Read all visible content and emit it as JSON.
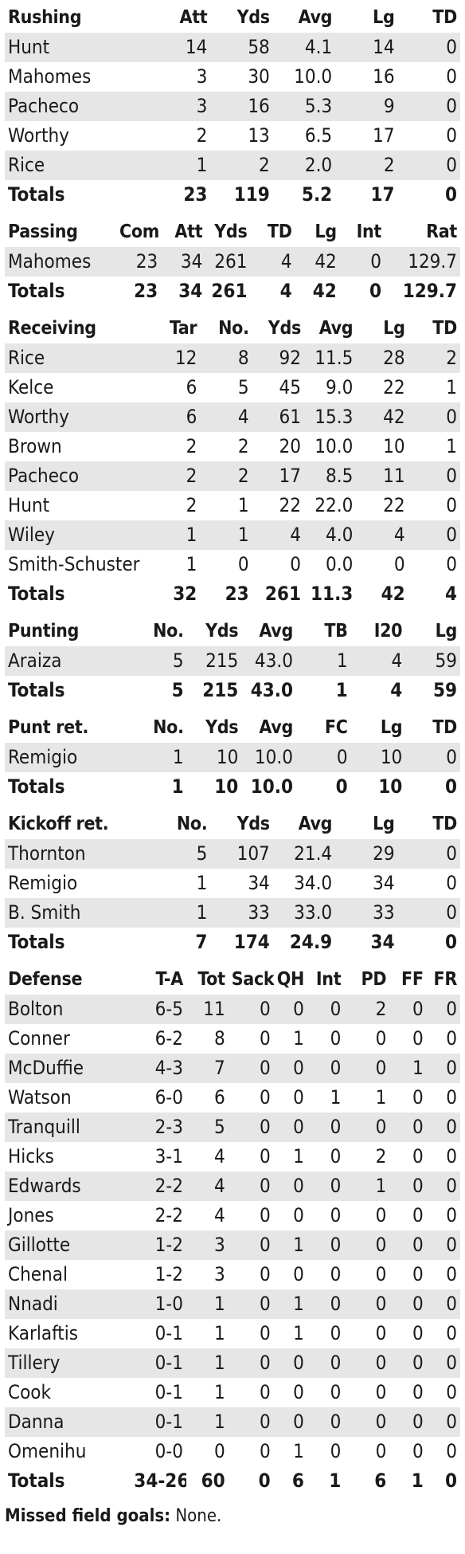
{
  "sections": [
    {
      "id": "rushing",
      "title": "Rushing",
      "headers": [
        "Att",
        "Yds",
        "Avg",
        "Lg",
        "TD"
      ],
      "rows": [
        [
          "Hunt",
          "14",
          "58",
          "4.1",
          "14",
          "0"
        ],
        [
          "Mahomes",
          "3",
          "30",
          "10.0",
          "16",
          "0"
        ],
        [
          "Pacheco",
          "3",
          "16",
          "5.3",
          "9",
          "0"
        ],
        [
          "Worthy",
          "2",
          "13",
          "6.5",
          "17",
          "0"
        ],
        [
          "Rice",
          "1",
          "2",
          "2.0",
          "2",
          "0"
        ]
      ],
      "totals": [
        "Totals",
        "23",
        "119",
        "5.2",
        "17",
        "0"
      ]
    },
    {
      "id": "passing",
      "title": "Passing",
      "headers": [
        "Com",
        "Att",
        "Yds",
        "TD",
        "Lg",
        "Int",
        "Rat"
      ],
      "rows": [
        [
          "Mahomes",
          "23",
          "34",
          "261",
          "4",
          "42",
          "0",
          "129.7"
        ]
      ],
      "totals": [
        "Totals",
        "23",
        "34",
        "261",
        "4",
        "42",
        "0",
        "129.7"
      ]
    },
    {
      "id": "receiving",
      "title": "Receiving",
      "headers": [
        "Tar",
        "No.",
        "Yds",
        "Avg",
        "Lg",
        "TD"
      ],
      "rows": [
        [
          "Rice",
          "12",
          "8",
          "92",
          "11.5",
          "28",
          "2"
        ],
        [
          "Kelce",
          "6",
          "5",
          "45",
          "9.0",
          "22",
          "1"
        ],
        [
          "Worthy",
          "6",
          "4",
          "61",
          "15.3",
          "42",
          "0"
        ],
        [
          "Brown",
          "2",
          "2",
          "20",
          "10.0",
          "10",
          "1"
        ],
        [
          "Pacheco",
          "2",
          "2",
          "17",
          "8.5",
          "11",
          "0"
        ],
        [
          "Hunt",
          "2",
          "1",
          "22",
          "22.0",
          "22",
          "0"
        ],
        [
          "Wiley",
          "1",
          "1",
          "4",
          "4.0",
          "4",
          "0"
        ],
        [
          "Smith-Schuster",
          "1",
          "0",
          "0",
          "0.0",
          "0",
          "0"
        ]
      ],
      "totals": [
        "Totals",
        "32",
        "23",
        "261",
        "11.3",
        "42",
        "4"
      ]
    },
    {
      "id": "punting",
      "title": "Punting",
      "headers": [
        "No.",
        "Yds",
        "Avg",
        "TB",
        "I20",
        "Lg"
      ],
      "rows": [
        [
          "Araiza",
          "5",
          "215",
          "43.0",
          "1",
          "4",
          "59"
        ]
      ],
      "totals": [
        "Totals",
        "5",
        "215",
        "43.0",
        "1",
        "4",
        "59"
      ]
    },
    {
      "id": "punt-ret",
      "title": "Punt ret.",
      "headers": [
        "No.",
        "Yds",
        "Avg",
        "FC",
        "Lg",
        "TD"
      ],
      "rows": [
        [
          "Remigio",
          "1",
          "10",
          "10.0",
          "0",
          "10",
          "0"
        ]
      ],
      "totals": [
        "Totals",
        "1",
        "10",
        "10.0",
        "0",
        "10",
        "0"
      ]
    },
    {
      "id": "kickoff-ret",
      "title": "Kickoff ret.",
      "headers": [
        "No.",
        "Yds",
        "Avg",
        "Lg",
        "TD"
      ],
      "rows": [
        [
          "Thornton",
          "5",
          "107",
          "21.4",
          "29",
          "0"
        ],
        [
          "Remigio",
          "1",
          "34",
          "34.0",
          "34",
          "0"
        ],
        [
          "B. Smith",
          "1",
          "33",
          "33.0",
          "33",
          "0"
        ]
      ],
      "totals": [
        "Totals",
        "7",
        "174",
        "24.9",
        "34",
        "0"
      ]
    },
    {
      "id": "defense",
      "title": "Defense",
      "headers": [
        "T-A",
        "Tot",
        "Sack",
        "QH",
        "Int",
        "PD",
        "FF",
        "FR"
      ],
      "rows": [
        [
          "Bolton",
          "6-5",
          "11",
          "0",
          "0",
          "0",
          "2",
          "0",
          "0"
        ],
        [
          "Conner",
          "6-2",
          "8",
          "0",
          "1",
          "0",
          "0",
          "0",
          "0"
        ],
        [
          "McDuffie",
          "4-3",
          "7",
          "0",
          "0",
          "0",
          "0",
          "1",
          "0"
        ],
        [
          "Watson",
          "6-0",
          "6",
          "0",
          "0",
          "1",
          "1",
          "0",
          "0"
        ],
        [
          "Tranquill",
          "2-3",
          "5",
          "0",
          "0",
          "0",
          "0",
          "0",
          "0"
        ],
        [
          "Hicks",
          "3-1",
          "4",
          "0",
          "1",
          "0",
          "2",
          "0",
          "0"
        ],
        [
          "Edwards",
          "2-2",
          "4",
          "0",
          "0",
          "0",
          "1",
          "0",
          "0"
        ],
        [
          "Jones",
          "2-2",
          "4",
          "0",
          "0",
          "0",
          "0",
          "0",
          "0"
        ],
        [
          "Gillotte",
          "1-2",
          "3",
          "0",
          "1",
          "0",
          "0",
          "0",
          "0"
        ],
        [
          "Chenal",
          "1-2",
          "3",
          "0",
          "0",
          "0",
          "0",
          "0",
          "0"
        ],
        [
          "Nnadi",
          "1-0",
          "1",
          "0",
          "1",
          "0",
          "0",
          "0",
          "0"
        ],
        [
          "Karlaftis",
          "0-1",
          "1",
          "0",
          "1",
          "0",
          "0",
          "0",
          "0"
        ],
        [
          "Tillery",
          "0-1",
          "1",
          "0",
          "0",
          "0",
          "0",
          "0",
          "0"
        ],
        [
          "Cook",
          "0-1",
          "1",
          "0",
          "0",
          "0",
          "0",
          "0",
          "0"
        ],
        [
          "Danna",
          "0-1",
          "1",
          "0",
          "0",
          "0",
          "0",
          "0",
          "0"
        ],
        [
          "Omenihu",
          "0-0",
          "0",
          "0",
          "1",
          "0",
          "0",
          "0",
          "0"
        ]
      ],
      "totals": [
        "Totals",
        "34-26",
        "60",
        "0",
        "6",
        "1",
        "6",
        "1",
        "0"
      ]
    }
  ],
  "footer": {
    "label": "Missed field goals:",
    "value": "None."
  }
}
